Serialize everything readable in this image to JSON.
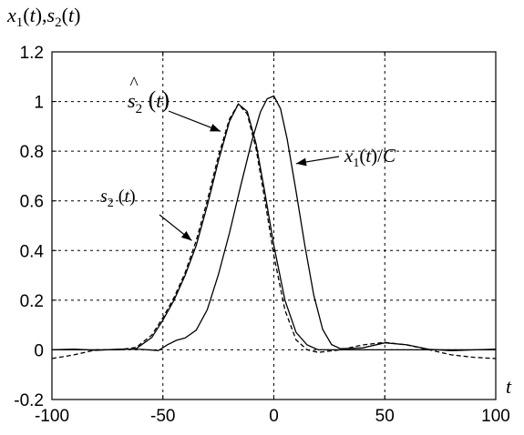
{
  "chart_data": {
    "type": "line",
    "title": "",
    "ylabel": "x1(t),s2(t)",
    "xlabel": "t",
    "xlim": [
      -100,
      100
    ],
    "ylim": [
      -0.2,
      1.2
    ],
    "xticks": [
      -100,
      -50,
      0,
      50,
      100
    ],
    "yticks": [
      -0.2,
      0,
      0.2,
      0.4,
      0.6,
      0.8,
      1,
      1.2
    ],
    "xtick_labels": [
      "-100",
      "-50",
      "0",
      "50",
      "100"
    ],
    "ytick_labels": [
      "-0.2",
      "0",
      "0.2",
      "0.4",
      "0.6",
      "0.8",
      "1",
      "1.2"
    ],
    "grid": true,
    "series": [
      {
        "name": "s2(t)",
        "style": "solid",
        "color": "#000000",
        "x": [
          -100,
          -90,
          -80,
          -70,
          -62,
          -55,
          -50,
          -45,
          -40,
          -35,
          -30,
          -25,
          -20,
          -16,
          -12,
          -8,
          -4,
          0,
          5,
          10,
          15,
          20,
          30,
          40,
          50,
          60,
          70,
          80,
          90,
          100
        ],
        "y": [
          0.0,
          0.0,
          0.0,
          0.0,
          0.005,
          0.05,
          0.12,
          0.2,
          0.3,
          0.42,
          0.58,
          0.76,
          0.92,
          0.99,
          0.96,
          0.83,
          0.63,
          0.42,
          0.2,
          0.07,
          0.02,
          0.0,
          0.0,
          0.0,
          0.0,
          0.0,
          0.0,
          0.0,
          0.0,
          0.0
        ]
      },
      {
        "name": "ŝ2(t)",
        "style": "dashed",
        "color": "#000000",
        "x": [
          -100,
          -90,
          -80,
          -70,
          -62,
          -55,
          -50,
          -45,
          -40,
          -35,
          -30,
          -25,
          -20,
          -16,
          -12,
          -8,
          -4,
          0,
          5,
          10,
          15,
          20,
          30,
          40,
          50,
          60,
          70,
          80,
          90,
          100
        ],
        "y": [
          -0.035,
          -0.02,
          0.0,
          0.0,
          0.01,
          0.06,
          0.13,
          0.21,
          0.31,
          0.44,
          0.6,
          0.78,
          0.93,
          0.99,
          0.95,
          0.81,
          0.6,
          0.38,
          0.16,
          0.04,
          0.0,
          -0.01,
          0.0,
          0.02,
          0.03,
          0.02,
          0.0,
          -0.02,
          -0.03,
          -0.035
        ]
      },
      {
        "name": "x1(t)/C",
        "style": "solid",
        "color": "#000000",
        "x": [
          -100,
          -90,
          -80,
          -70,
          -60,
          -52,
          -48,
          -44,
          -40,
          -35,
          -30,
          -25,
          -20,
          -15,
          -10,
          -6,
          -3,
          0,
          3,
          6,
          10,
          14,
          18,
          22,
          26,
          30,
          40,
          50,
          60,
          70,
          80,
          90,
          100
        ],
        "y": [
          0.0,
          0.005,
          0.0,
          0.003,
          0.0,
          -0.005,
          0.02,
          0.04,
          0.05,
          0.08,
          0.16,
          0.3,
          0.47,
          0.66,
          0.84,
          0.96,
          1.01,
          1.02,
          0.97,
          0.85,
          0.64,
          0.42,
          0.22,
          0.08,
          0.02,
          0.005,
          0.01,
          0.03,
          0.02,
          0.0,
          -0.005,
          0.0,
          0.005
        ]
      }
    ],
    "annotations": [
      {
        "text": "ŝ2(t)",
        "arrow_to": [
          -24,
          0.88
        ]
      },
      {
        "text": "s2(t)",
        "arrow_to": [
          -37,
          0.44
        ]
      },
      {
        "text": "x1(t)/C",
        "arrow_to": [
          10,
          0.75
        ]
      }
    ]
  }
}
